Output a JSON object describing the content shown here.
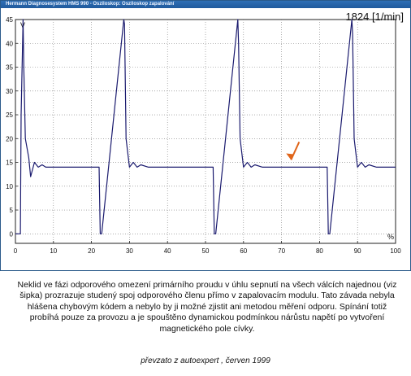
{
  "window": {
    "title": "Hermann Diagnosesystem HMS 990 - Osziloskop: Osziloskop zapalování"
  },
  "readout": {
    "rpm": "1824 [1/min]"
  },
  "chart_data": {
    "type": "line",
    "title": "",
    "xlabel": "%",
    "ylabel": "V",
    "xlim": [
      0,
      100
    ],
    "ylim": [
      -2,
      45
    ],
    "grid": true,
    "x_ticks": [
      "0",
      "10",
      "20",
      "30",
      "40",
      "50",
      "60",
      "70",
      "80",
      "90",
      "100"
    ],
    "y_ticks": [
      "0",
      "5",
      "10",
      "15",
      "20",
      "25",
      "30",
      "35",
      "40",
      "45"
    ],
    "series": [
      {
        "color": "#1a1a6e",
        "x": [
          0,
          1.3,
          1.5,
          2.0,
          2.2,
          2.6,
          3.5,
          4.0,
          5.0,
          6.0,
          7.0,
          8.0,
          9.0,
          10.0,
          15.0,
          22.0,
          22.3,
          22.7,
          28.5,
          28.7,
          29.1,
          30.0,
          31.0,
          32.0,
          33.0,
          35.0,
          37.0,
          38.0,
          45.0,
          52.0,
          52.3,
          52.7,
          58.5,
          58.7,
          59.1,
          60.0,
          61.0,
          62.0,
          63.0,
          65.0,
          67.0,
          68.0,
          75.0,
          82.0,
          82.3,
          82.7,
          88.5,
          88.7,
          89.1,
          90.0,
          91.0,
          92.0,
          93.0,
          95.0,
          97.0,
          98.0,
          100.0
        ],
        "y": [
          0,
          0,
          25,
          45,
          35,
          20,
          16,
          12,
          15,
          14,
          14.5,
          14,
          14,
          14,
          14,
          14,
          0,
          0,
          45,
          44,
          20,
          14,
          15,
          14,
          14.5,
          14,
          14,
          14,
          14,
          14,
          0,
          0,
          45,
          40,
          20,
          14,
          15,
          14,
          14.5,
          14,
          14,
          14,
          14,
          14,
          0,
          0,
          45,
          42,
          20,
          14,
          15,
          14,
          14.5,
          14,
          14,
          14,
          14
        ]
      }
    ],
    "annotations": [
      {
        "type": "arrow",
        "color": "#e0651a",
        "x": 72.5,
        "y": 14.5
      }
    ]
  },
  "caption": {
    "text": "Neklid ve fázi odporového omezení primárního proudu v úhlu sepnutí na všech válcích najednou (viz šipka) prozrazuje studený spoj odporového členu přímo v zapalovacím modulu. Tato závada nebyla hlášena chybovým kódem a nebylo by ji možné zjistit ani metodou měření odporu. Spínání totiž probíhá pouze za provozu a je spouštěno dynamickou podmínkou nárůstu napětí po vytvoření magnetického pole cívky.",
    "source": "převzato z autoexpert , červen 1999"
  }
}
